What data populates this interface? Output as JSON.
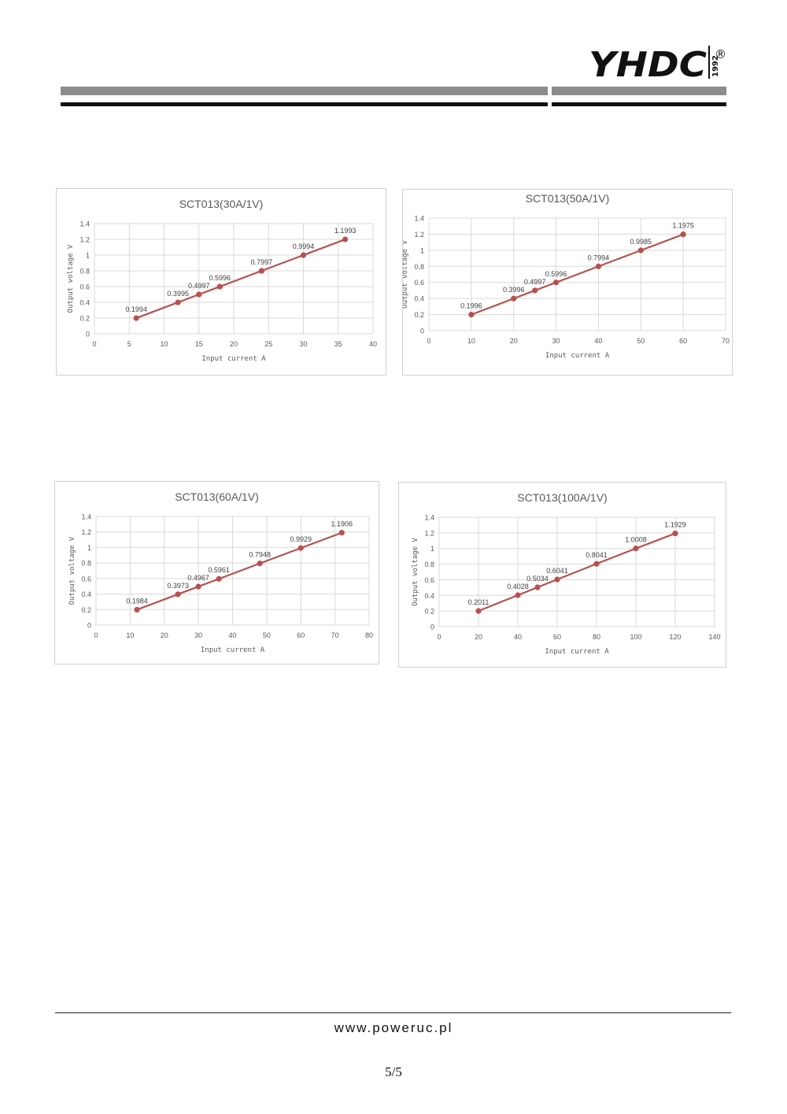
{
  "header": {
    "logo_text": "YHDC",
    "logo_year": "1992",
    "logo_mark": "®"
  },
  "footer": {
    "url": "www.poweruc.pl",
    "page": "5/5"
  },
  "colors": {
    "series": "#b8514e",
    "grid": "#d9d9d9",
    "axis_text": "#595959"
  },
  "chart_data": [
    {
      "type": "line",
      "title": "SCT013(30A/1V)",
      "xlabel": "Input current  A",
      "ylabel": "Output voltage  V",
      "xlim": [
        0,
        40
      ],
      "ylim": [
        0,
        1.4
      ],
      "xticks": [
        0,
        5,
        10,
        15,
        20,
        25,
        30,
        35,
        40
      ],
      "yticks": [
        0,
        0.2,
        0.4,
        0.6,
        0.8,
        1,
        1.2,
        1.4
      ],
      "grid": true,
      "x": [
        6,
        12,
        15,
        18,
        24,
        30,
        36
      ],
      "y": [
        0.1994,
        0.3995,
        0.4997,
        0.5996,
        0.7997,
        0.9994,
        1.1993
      ],
      "labels": [
        "0.1994",
        "0.3995",
        "0.4997",
        "0.5996",
        "0.7997",
        "0.9994",
        "1.1993"
      ]
    },
    {
      "type": "line",
      "title": "SCT013(50A/1V)",
      "xlabel": "Input current  A",
      "ylabel": "Output voltage  V",
      "xlim": [
        0,
        70
      ],
      "ylim": [
        0,
        1.4
      ],
      "xticks": [
        0,
        10,
        20,
        30,
        40,
        50,
        60,
        70
      ],
      "yticks": [
        0,
        0.2,
        0.4,
        0.6,
        0.8,
        1,
        1.2,
        1.4
      ],
      "grid": true,
      "x": [
        10,
        20,
        25,
        30,
        40,
        50,
        60
      ],
      "y": [
        0.1996,
        0.3996,
        0.4997,
        0.5996,
        0.7994,
        0.9985,
        1.1975
      ],
      "labels": [
        "0.1996",
        "0.3996",
        "0.4997",
        "0.5996",
        "0.7994",
        "0.9985",
        "1.1975"
      ]
    },
    {
      "type": "line",
      "title": "SCT013(60A/1V)",
      "xlabel": "Input current  A",
      "ylabel": "Output voltage  V",
      "xlim": [
        0,
        80
      ],
      "ylim": [
        0,
        1.4
      ],
      "xticks": [
        0,
        10,
        20,
        30,
        40,
        50,
        60,
        70,
        80
      ],
      "yticks": [
        0,
        0.2,
        0.4,
        0.6,
        0.8,
        1,
        1.2,
        1.4
      ],
      "grid": true,
      "x": [
        12,
        24,
        30,
        36,
        48,
        60,
        72
      ],
      "y": [
        0.1984,
        0.3973,
        0.4967,
        0.5961,
        0.7948,
        0.9929,
        1.1906
      ],
      "labels": [
        "0.1984",
        "0.3973",
        "0.4967",
        "0.5961",
        "0.7948",
        "0.9929",
        "1.1906"
      ]
    },
    {
      "type": "line",
      "title": "SCT013(100A/1V)",
      "xlabel": "Input current  A",
      "ylabel": "Output voltage  V",
      "xlim": [
        0,
        140
      ],
      "ylim": [
        0,
        1.4
      ],
      "xticks": [
        0,
        20,
        40,
        60,
        80,
        100,
        120,
        140
      ],
      "yticks": [
        0,
        0.2,
        0.4,
        0.6,
        0.8,
        1,
        1.2,
        1.4
      ],
      "grid": true,
      "x": [
        20,
        40,
        50,
        60,
        80,
        100,
        120
      ],
      "y": [
        0.2011,
        0.4028,
        0.5034,
        0.6041,
        0.8041,
        1.0008,
        1.1929
      ],
      "labels": [
        "0.2011",
        "0.4028",
        "0.5034",
        "0.6041",
        "0.8041",
        "1.0008",
        "1.1929"
      ]
    }
  ]
}
